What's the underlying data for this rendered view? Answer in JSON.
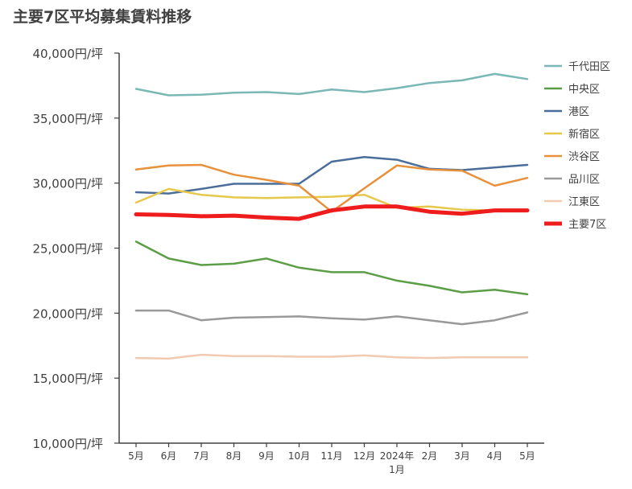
{
  "chart_data": {
    "type": "line",
    "title": "主要7区平均募集賃料推移",
    "xlabel": "",
    "ylabel": "",
    "ylim": [
      10000,
      40000
    ],
    "yticks": [
      "40,000円/坪",
      "35,000円/坪",
      "30,000円/坪",
      "25,000円/坪",
      "20,000円/坪",
      "15,000円/坪",
      "10,000円/坪"
    ],
    "ytick_values": [
      40000,
      35000,
      30000,
      25000,
      20000,
      15000,
      10000
    ],
    "categories": [
      "5月",
      "6月",
      "7月",
      "8月",
      "9月",
      "10月",
      "11月",
      "12月",
      "2024年|1月",
      "2月",
      "3月",
      "4月",
      "5月"
    ],
    "grid": false,
    "legend_position": "right",
    "series": [
      {
        "name": "千代田区",
        "color": "#79b8b5",
        "width": 2.5,
        "values": [
          37250,
          36750,
          36800,
          36950,
          37000,
          36850,
          37200,
          37000,
          37300,
          37700,
          37900,
          38400,
          38000
        ]
      },
      {
        "name": "中央区",
        "color": "#5c9e46",
        "width": 2.5,
        "values": [
          25500,
          24200,
          23700,
          23800,
          24200,
          23500,
          23150,
          23150,
          22500,
          22100,
          21600,
          21800,
          21450
        ]
      },
      {
        "name": "港区",
        "color": "#4a6d99",
        "width": 2.5,
        "values": [
          29300,
          29200,
          29550,
          29950,
          29950,
          29950,
          31650,
          32000,
          31800,
          31100,
          31000,
          31200,
          31400
        ]
      },
      {
        "name": "新宿区",
        "color": "#e6c84b",
        "width": 2.5,
        "values": [
          28500,
          29550,
          29100,
          28900,
          28850,
          28900,
          28950,
          29100,
          28100,
          28200,
          27950,
          27900,
          27900
        ]
      },
      {
        "name": "渋谷区",
        "color": "#e8913d",
        "width": 2.5,
        "values": [
          31050,
          31350,
          31400,
          30650,
          30250,
          29800,
          27800,
          29600,
          31350,
          31050,
          30950,
          29800,
          30400
        ]
      },
      {
        "name": "品川区",
        "color": "#999999",
        "width": 2.5,
        "values": [
          20200,
          20200,
          19450,
          19650,
          19700,
          19750,
          19600,
          19500,
          19750,
          19450,
          19150,
          19450,
          20050
        ]
      },
      {
        "name": "江東区",
        "color": "#f2c9b1",
        "width": 2.5,
        "values": [
          16550,
          16500,
          16800,
          16700,
          16700,
          16650,
          16650,
          16750,
          16600,
          16550,
          16600,
          16600,
          16600
        ]
      },
      {
        "name": "主要7区",
        "color": "#ee1c1c",
        "width": 5,
        "values": [
          27600,
          27550,
          27450,
          27500,
          27350,
          27250,
          27900,
          28200,
          28200,
          27800,
          27650,
          27900,
          27900
        ]
      }
    ]
  }
}
